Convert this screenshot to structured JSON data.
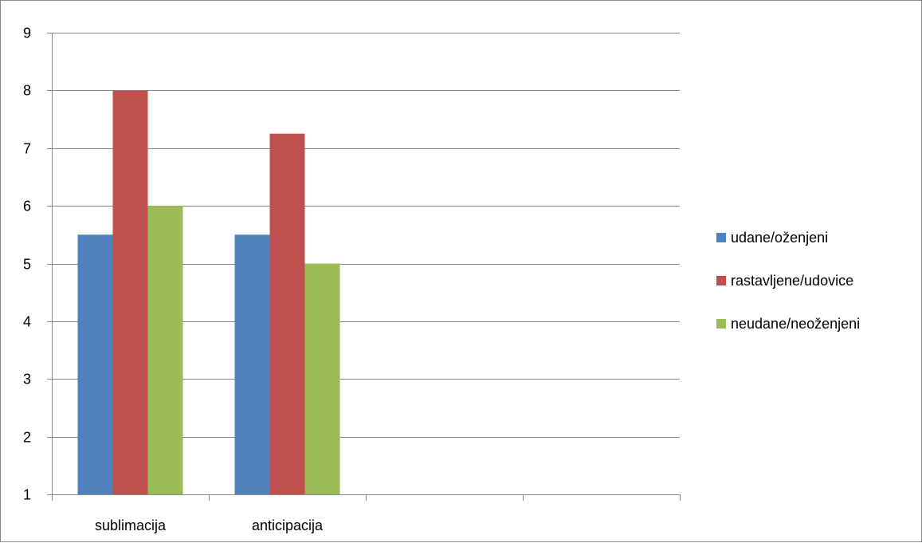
{
  "chart_data": {
    "type": "bar",
    "title": "",
    "xlabel": "",
    "ylabel": "",
    "ylim": [
      1,
      9
    ],
    "yticks": [
      1,
      2,
      3,
      4,
      5,
      6,
      7,
      8,
      9
    ],
    "grid": true,
    "legend_position": "right",
    "category_slots": 4,
    "categories": [
      "sublimacija",
      "anticipacija"
    ],
    "series": [
      {
        "name": "udane/oženjeni",
        "color": "#4F81BD",
        "values": [
          5.5,
          5.5
        ]
      },
      {
        "name": "rastavljene/udovice",
        "color": "#C0504D",
        "values": [
          8,
          7.25
        ]
      },
      {
        "name": "neudane/neoženjeni",
        "color": "#9BBB59",
        "values": [
          6,
          5
        ]
      }
    ]
  }
}
